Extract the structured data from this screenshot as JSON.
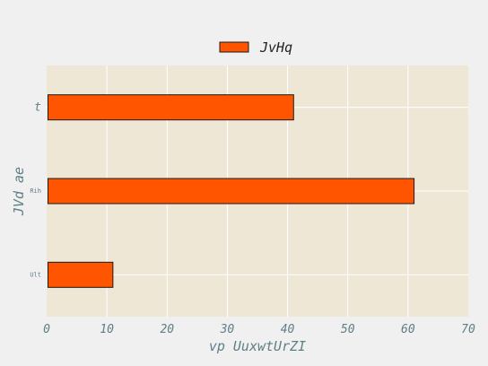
{
  "chart_data": {
    "type": "bar",
    "orientation": "horizontal",
    "categories": [
      "Ult",
      "Rih",
      "t"
    ],
    "series": [
      {
        "name": "JvHq",
        "values": [
          11,
          61,
          41
        ]
      }
    ],
    "xlabel": "vp UuxwtUrZI",
    "ylabel": "JVd ae",
    "xlim": [
      0,
      70
    ],
    "xticks": [
      0,
      10,
      20,
      30,
      40,
      50,
      60,
      70
    ],
    "grid": true,
    "legend_position": "top-center",
    "colors": {
      "bar": "#ff5500",
      "bar_edge": "#1a1a1a",
      "plot_bg": "#efe7d6",
      "grid": "#ffffff",
      "figure_bg": "#f0f0f0"
    }
  }
}
